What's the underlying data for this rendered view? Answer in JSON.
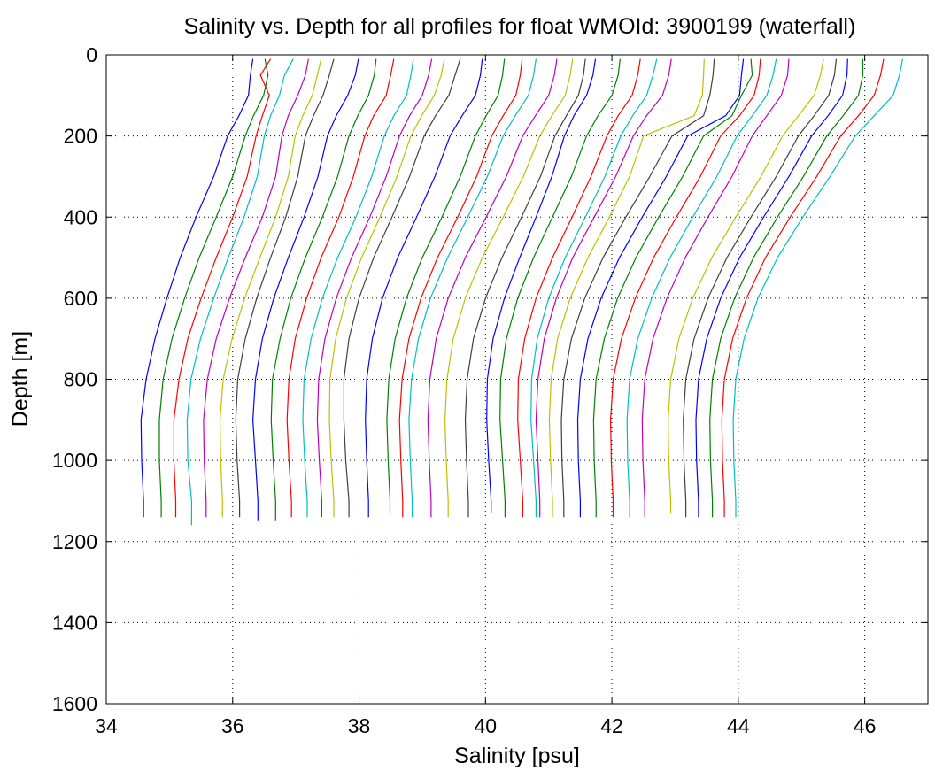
{
  "chart_data": {
    "type": "line",
    "title": "Salinity vs. Depth for all profiles for float WMOId: 3900199 (waterfall)",
    "xlabel": "Salinity [psu]",
    "ylabel": "Depth [m]",
    "xlim": [
      34,
      47
    ],
    "ylim": [
      0,
      1600
    ],
    "y_reversed": true,
    "grid": true,
    "x_ticks": [
      "34",
      "36",
      "38",
      "40",
      "42",
      "44",
      "46"
    ],
    "y_ticks": [
      "0",
      "200",
      "400",
      "600",
      "800",
      "1000",
      "1200",
      "1400",
      "1600"
    ],
    "series_colors": [
      "#0000ff",
      "#008000",
      "#ff0000",
      "#00bfbf",
      "#bf00bf",
      "#bfbf00",
      "#404040"
    ],
    "depth_levels": [
      10,
      50,
      100,
      150,
      200,
      300,
      400,
      500,
      600,
      700,
      800,
      900,
      1000,
      1100
    ],
    "series": [
      {
        "salinity": [
          36.32,
          36.28,
          36.25,
          36.1,
          35.92,
          35.7,
          35.42,
          35.17,
          34.96,
          34.77,
          34.63,
          34.55,
          34.56,
          34.59
        ],
        "bottom_depth": 1140
      },
      {
        "salinity": [
          36.51,
          36.56,
          36.49,
          36.33,
          36.2,
          36.0,
          35.74,
          35.47,
          35.24,
          35.04,
          34.9,
          34.84,
          34.84,
          34.87
        ],
        "bottom_depth": 1140
      },
      {
        "salinity": [
          36.6,
          36.44,
          36.58,
          36.47,
          36.37,
          36.23,
          36.0,
          35.74,
          35.5,
          35.29,
          35.15,
          35.07,
          35.07,
          35.1
        ],
        "bottom_depth": 1140
      },
      {
        "salinity": [
          36.96,
          36.82,
          36.74,
          36.6,
          36.5,
          36.39,
          36.18,
          35.93,
          35.7,
          35.49,
          35.34,
          35.28,
          35.29,
          35.35
        ],
        "bottom_depth": 1160
      },
      {
        "salinity": [
          37.2,
          37.15,
          37.03,
          36.88,
          36.78,
          36.68,
          36.47,
          36.2,
          35.95,
          35.74,
          35.6,
          35.54,
          35.55,
          35.58
        ],
        "bottom_depth": 1140
      },
      {
        "salinity": [
          37.4,
          37.34,
          37.26,
          37.11,
          36.99,
          36.88,
          36.68,
          36.43,
          36.19,
          35.99,
          35.85,
          35.8,
          35.81,
          35.84
        ],
        "bottom_depth": 1140
      },
      {
        "salinity": [
          37.6,
          37.53,
          37.43,
          37.28,
          37.15,
          37.03,
          36.84,
          36.6,
          36.38,
          36.2,
          36.08,
          36.05,
          36.07,
          36.11
        ],
        "bottom_depth": 1140
      },
      {
        "salinity": [
          37.99,
          37.94,
          37.82,
          37.64,
          37.5,
          37.35,
          37.13,
          36.88,
          36.65,
          36.47,
          36.36,
          36.32,
          36.36,
          36.4
        ],
        "bottom_depth": 1150
      },
      {
        "salinity": [
          38.27,
          38.24,
          38.15,
          37.98,
          37.84,
          37.66,
          37.42,
          37.15,
          36.92,
          36.75,
          36.63,
          36.61,
          36.64,
          36.68
        ],
        "bottom_depth": 1150
      },
      {
        "salinity": [
          38.55,
          38.5,
          38.43,
          38.23,
          38.09,
          37.91,
          37.68,
          37.4,
          37.17,
          36.99,
          36.89,
          36.86,
          36.89,
          36.93
        ],
        "bottom_depth": 1140
      },
      {
        "salinity": [
          38.86,
          38.82,
          38.75,
          38.55,
          38.4,
          38.2,
          37.95,
          37.66,
          37.42,
          37.24,
          37.13,
          37.11,
          37.14,
          37.18
        ],
        "bottom_depth": 1140
      },
      {
        "salinity": [
          39.15,
          39.1,
          39.0,
          38.8,
          38.64,
          38.43,
          38.17,
          37.88,
          37.64,
          37.46,
          37.36,
          37.34,
          37.37,
          37.41
        ],
        "bottom_depth": 1140
      },
      {
        "salinity": [
          39.35,
          39.3,
          39.19,
          38.99,
          38.82,
          38.6,
          38.33,
          38.04,
          37.8,
          37.63,
          37.54,
          37.53,
          37.56,
          37.6
        ],
        "bottom_depth": 1140
      },
      {
        "salinity": [
          39.6,
          39.52,
          39.42,
          39.21,
          39.03,
          38.8,
          38.52,
          38.23,
          38.0,
          37.84,
          37.76,
          37.76,
          37.79,
          37.84
        ],
        "bottom_depth": 1140
      },
      {
        "salinity": [
          39.95,
          39.92,
          39.84,
          39.63,
          39.44,
          39.2,
          38.91,
          38.61,
          38.37,
          38.21,
          38.12,
          38.1,
          38.12,
          38.15
        ],
        "bottom_depth": 1140
      },
      {
        "salinity": [
          40.3,
          40.27,
          40.2,
          40.01,
          39.84,
          39.6,
          39.31,
          39.0,
          38.75,
          38.57,
          38.47,
          38.44,
          38.46,
          38.49
        ],
        "bottom_depth": 1130
      },
      {
        "salinity": [
          40.58,
          40.55,
          40.48,
          40.28,
          40.1,
          39.86,
          39.56,
          39.24,
          38.98,
          38.79,
          38.68,
          38.64,
          38.66,
          38.69
        ],
        "bottom_depth": 1140
      },
      {
        "salinity": [
          40.8,
          40.76,
          40.68,
          40.47,
          40.28,
          40.03,
          39.72,
          39.4,
          39.13,
          38.94,
          38.83,
          38.79,
          38.81,
          38.84
        ],
        "bottom_depth": 1140
      },
      {
        "salinity": [
          41.13,
          41.09,
          41.0,
          40.79,
          40.59,
          40.33,
          40.01,
          39.68,
          39.41,
          39.22,
          39.12,
          39.09,
          39.11,
          39.14
        ],
        "bottom_depth": 1140
      },
      {
        "salinity": [
          41.38,
          41.34,
          41.26,
          41.05,
          40.86,
          40.6,
          40.28,
          39.95,
          39.68,
          39.49,
          39.39,
          39.36,
          39.38,
          39.41
        ],
        "bottom_depth": 1140
      },
      {
        "salinity": [
          41.58,
          41.55,
          41.47,
          41.28,
          41.1,
          40.87,
          40.57,
          40.26,
          40.0,
          39.81,
          39.71,
          39.68,
          39.7,
          39.73
        ],
        "bottom_depth": 1140
      },
      {
        "salinity": [
          41.74,
          41.7,
          41.6,
          41.4,
          41.25,
          41.05,
          40.8,
          40.54,
          40.3,
          40.12,
          40.03,
          40.02,
          40.05,
          40.09
        ],
        "bottom_depth": 1130
      },
      {
        "salinity": [
          42.13,
          42.1,
          42.0,
          41.78,
          41.6,
          41.36,
          41.06,
          40.76,
          40.51,
          40.33,
          40.24,
          40.23,
          40.27,
          40.31
        ],
        "bottom_depth": 1140
      },
      {
        "salinity": [
          42.45,
          42.41,
          42.32,
          42.1,
          41.92,
          41.67,
          41.37,
          41.06,
          40.8,
          40.62,
          40.52,
          40.51,
          40.55,
          40.59
        ],
        "bottom_depth": 1140
      },
      {
        "salinity": [
          42.71,
          42.65,
          42.55,
          42.33,
          42.14,
          41.89,
          41.58,
          41.26,
          41.0,
          40.82,
          40.73,
          40.72,
          40.76,
          40.8
        ],
        "bottom_depth": 1140
      },
      {
        "salinity": [
          42.94,
          42.9,
          42.8,
          42.55,
          42.34,
          42.06,
          41.72,
          41.38,
          41.12,
          40.93,
          40.83,
          40.8,
          40.83,
          40.86
        ],
        "bottom_depth": 1140
      },
      {
        "salinity": [
          43.46,
          43.45,
          43.43,
          43.3,
          42.5,
          42.28,
          41.96,
          41.62,
          41.34,
          41.14,
          41.04,
          41.01,
          41.03,
          41.06
        ],
        "bottom_depth": 1140
      },
      {
        "salinity": [
          43.62,
          43.6,
          43.55,
          43.45,
          42.95,
          42.6,
          42.22,
          41.86,
          41.57,
          41.36,
          41.24,
          41.2,
          41.21,
          41.24
        ],
        "bottom_depth": 1140
      },
      {
        "salinity": [
          44.08,
          44.05,
          44.02,
          43.8,
          43.2,
          42.86,
          42.48,
          42.12,
          41.83,
          41.62,
          41.5,
          41.46,
          41.47,
          41.5
        ],
        "bottom_depth": 1140
      },
      {
        "salinity": [
          44.2,
          44.22,
          44.05,
          43.9,
          43.45,
          43.12,
          42.74,
          42.38,
          42.09,
          41.88,
          41.75,
          41.71,
          41.72,
          41.75
        ],
        "bottom_depth": 1140
      },
      {
        "salinity": [
          44.35,
          44.33,
          44.25,
          44.02,
          43.72,
          43.4,
          43.02,
          42.66,
          42.37,
          42.15,
          42.02,
          41.98,
          41.99,
          42.02
        ],
        "bottom_depth": 1140
      },
      {
        "salinity": [
          44.6,
          44.55,
          44.45,
          44.22,
          43.98,
          43.66,
          43.28,
          42.92,
          42.63,
          42.41,
          42.28,
          42.24,
          42.25,
          42.28
        ],
        "bottom_depth": 1140
      },
      {
        "salinity": [
          44.8,
          44.78,
          44.68,
          44.45,
          44.22,
          43.9,
          43.52,
          43.16,
          42.87,
          42.65,
          42.52,
          42.48,
          42.49,
          42.52
        ],
        "bottom_depth": 1140
      },
      {
        "salinity": [
          45.35,
          45.3,
          45.2,
          44.95,
          44.7,
          44.36,
          43.96,
          43.58,
          43.28,
          43.06,
          42.93,
          42.89,
          42.9,
          42.93
        ],
        "bottom_depth": 1130
      },
      {
        "salinity": [
          45.55,
          45.52,
          45.43,
          45.2,
          44.95,
          44.6,
          44.2,
          43.82,
          43.52,
          43.3,
          43.17,
          43.13,
          43.14,
          43.17
        ],
        "bottom_depth": 1140
      },
      {
        "salinity": [
          45.73,
          45.72,
          45.65,
          45.42,
          45.16,
          44.8,
          44.4,
          44.02,
          43.72,
          43.5,
          43.37,
          43.33,
          43.34,
          43.37
        ],
        "bottom_depth": 1140
      },
      {
        "salinity": [
          45.97,
          45.97,
          45.9,
          45.66,
          45.4,
          45.03,
          44.62,
          44.24,
          43.94,
          43.72,
          43.59,
          43.55,
          43.56,
          43.59
        ],
        "bottom_depth": 1140
      },
      {
        "salinity": [
          46.3,
          46.25,
          46.15,
          45.9,
          45.62,
          45.24,
          44.82,
          44.43,
          44.13,
          43.91,
          43.78,
          43.74,
          43.75,
          43.78
        ],
        "bottom_depth": 1140
      },
      {
        "salinity": [
          46.6,
          46.55,
          46.45,
          46.15,
          45.85,
          45.45,
          45.02,
          44.62,
          44.31,
          44.09,
          43.96,
          43.92,
          43.93,
          43.96
        ],
        "bottom_depth": 1140
      }
    ]
  }
}
